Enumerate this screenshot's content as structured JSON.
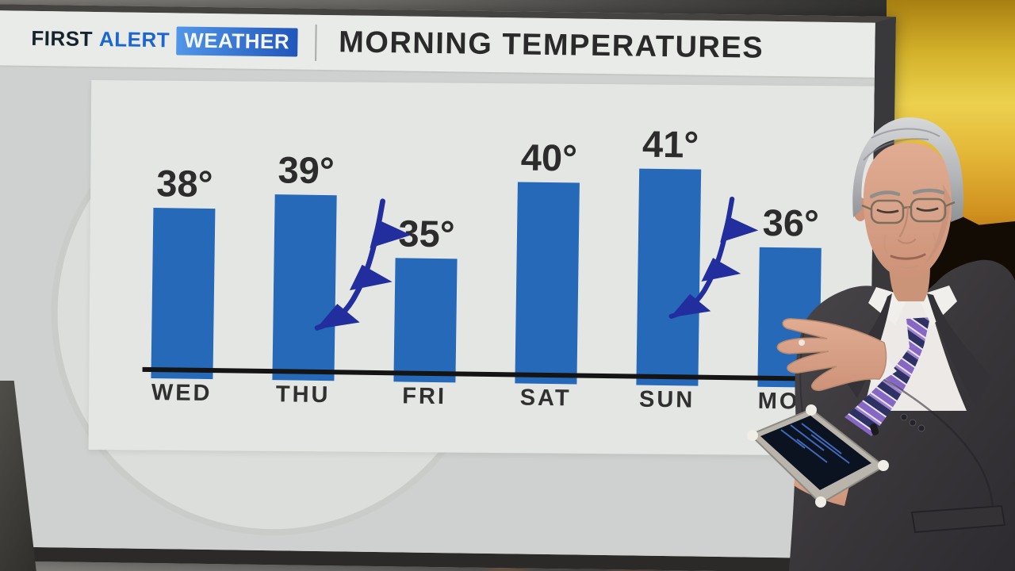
{
  "branding": {
    "first": "FIRST",
    "alert": "ALERT",
    "weather": "WEATHER"
  },
  "header": {
    "title": "MORNING TEMPERATURES"
  },
  "chart_data": {
    "type": "bar",
    "title": "MORNING TEMPERATURES",
    "categories": [
      "WED",
      "THU",
      "FRI",
      "SAT",
      "SUN",
      "MON"
    ],
    "values": [
      38,
      39,
      35,
      40,
      41,
      36
    ],
    "value_labels": [
      "38°",
      "39°",
      "35°",
      "40°",
      "41°",
      "36°"
    ],
    "degree_symbol": "°",
    "bar_color": "#2569b8",
    "axis_color": "#141414",
    "y_axis_visible": false,
    "grid": false,
    "legend": "none",
    "annotations": [
      {
        "type": "cold-front",
        "between": [
          "THU",
          "FRI"
        ],
        "color": "#232e9e"
      },
      {
        "type": "cold-front",
        "between": [
          "SUN",
          "MON"
        ],
        "color": "#232e9e"
      }
    ],
    "occlusion_note": "MON label partially hidden by presenter (reads MO)"
  },
  "scene": {
    "colors": {
      "screen_background": "#ced1cf",
      "chart_panel": "#e4e6e3",
      "header_band": "#e9ebe8",
      "logo_blue": "#1c67cf",
      "badge_gradient_start": "#5296e8",
      "badge_gradient_end": "#2056ba",
      "sunset_yellow": "#ecd14e",
      "sunset_orange": "#d0901e",
      "suit_charcoal": "#3a373b",
      "tie_purple": "#9d81d0"
    }
  }
}
